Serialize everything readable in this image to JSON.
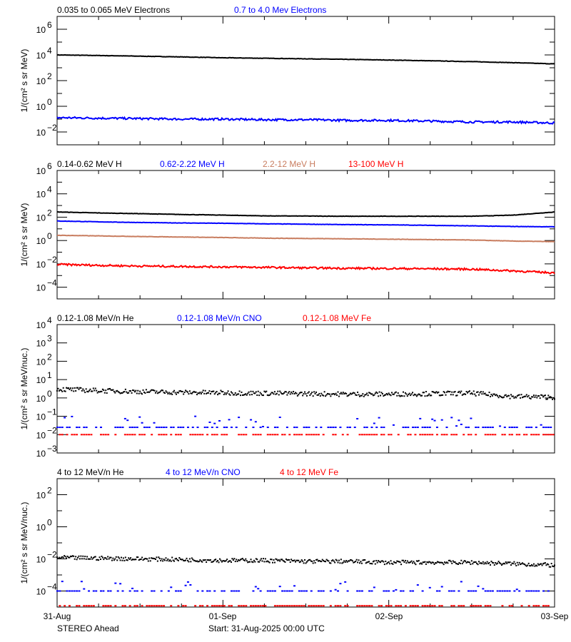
{
  "chart_data": [
    {
      "type": "line",
      "legend": [
        {
          "label": "0.035 to 0.065 MeV Electrons",
          "color": "#000000"
        },
        {
          "label": "0.7 to 4.0 Mev Electrons",
          "color": "#0000ff"
        }
      ],
      "ylabel": "1/(cm² s sr MeV)",
      "yscale": "log",
      "ylim_exp": [
        -3,
        7
      ],
      "ytick_exponents": [
        6,
        4,
        2,
        0,
        -2
      ],
      "x_hours": [
        0,
        6,
        12,
        18,
        24,
        30,
        36,
        42,
        48,
        54,
        60,
        66,
        72
      ],
      "series": [
        {
          "color": "#000000",
          "style": "line",
          "values": [
            10000,
            9000,
            8000,
            7000,
            6000,
            5500,
            5000,
            4500,
            4000,
            3500,
            3000,
            2500,
            2000
          ]
        },
        {
          "color": "#0000ff",
          "style": "line",
          "values": [
            0.13,
            0.12,
            0.11,
            0.1,
            0.1,
            0.09,
            0.09,
            0.08,
            0.08,
            0.07,
            0.06,
            0.06,
            0.05
          ]
        }
      ]
    },
    {
      "type": "line",
      "legend": [
        {
          "label": "0.14-0.62 MeV H",
          "color": "#000000"
        },
        {
          "label": "0.62-2.22 MeV H",
          "color": "#0000ff"
        },
        {
          "label": "2.2-12 MeV H",
          "color": "#c87c5e"
        },
        {
          "label": "13-100 MeV H",
          "color": "#ff0000"
        }
      ],
      "ylabel": "1/(cm² s sr MeV)",
      "yscale": "log",
      "ylim_exp": [
        -5,
        6
      ],
      "ytick_exponents": [
        6,
        4,
        2,
        0,
        -2,
        -4
      ],
      "x_hours": [
        0,
        6,
        12,
        18,
        24,
        30,
        36,
        42,
        48,
        54,
        60,
        66,
        72
      ],
      "series": [
        {
          "color": "#000000",
          "style": "line",
          "values": [
            280,
            230,
            200,
            170,
            150,
            130,
            125,
            120,
            120,
            120,
            120,
            150,
            280
          ]
        },
        {
          "color": "#0000ff",
          "style": "line",
          "values": [
            47,
            40,
            35,
            32,
            30,
            27,
            25,
            23,
            22,
            20,
            18,
            16,
            15
          ]
        },
        {
          "color": "#c87c5e",
          "style": "line",
          "values": [
            2.8,
            2.5,
            2.2,
            2,
            1.8,
            1.6,
            1.5,
            1.4,
            1.3,
            1.2,
            1.1,
            0.9,
            0.8
          ]
        },
        {
          "color": "#ff0000",
          "style": "line",
          "values": [
            0.009,
            0.0075,
            0.0065,
            0.006,
            0.0055,
            0.005,
            0.0045,
            0.0042,
            0.004,
            0.0038,
            0.0035,
            0.0025,
            0.0017
          ]
        }
      ]
    },
    {
      "type": "scatter",
      "legend": [
        {
          "label": "0.12-1.08 MeV/n He",
          "color": "#000000"
        },
        {
          "label": "0.12-1.08 MeV/n CNO",
          "color": "#0000ff"
        },
        {
          "label": "0.12-1.08 MeV Fe",
          "color": "#ff0000"
        }
      ],
      "ylabel": "1/(cm² s sr MeV/nuc.)",
      "yscale": "log",
      "ylim_exp": [
        -3,
        4
      ],
      "ytick_exponents": [
        4,
        3,
        2,
        1,
        0,
        -1,
        -2,
        -3
      ],
      "x_hours": [
        0,
        6,
        12,
        18,
        24,
        30,
        36,
        42,
        48,
        54,
        60,
        66,
        72
      ],
      "series": [
        {
          "color": "#000000",
          "style": "scatter",
          "values": [
            3,
            2.5,
            2.2,
            2,
            1.9,
            1.8,
            1.7,
            1.6,
            1.6,
            1.7,
            1.8,
            1.2,
            1.1
          ]
        },
        {
          "color": "#0000ff",
          "style": "scatter",
          "values": [
            0.025,
            0.025,
            0.025,
            0.025,
            0.025,
            0.025,
            0.025,
            0.025,
            0.025,
            0.025,
            0.025,
            0.025,
            0.025
          ]
        },
        {
          "color": "#ff0000",
          "style": "scatter",
          "values": [
            0.01,
            0.01,
            0.01,
            0.01,
            0.01,
            0.01,
            0.01,
            0.01,
            0.01,
            0.01,
            0.01,
            0.01,
            0.01
          ]
        }
      ]
    },
    {
      "type": "scatter",
      "legend": [
        {
          "label": "4 to 12 MeV/n He",
          "color": "#000000"
        },
        {
          "label": "4 to 12 MeV/n CNO",
          "color": "#0000ff"
        },
        {
          "label": "4 to 12 MeV Fe",
          "color": "#ff0000"
        }
      ],
      "ylabel": "1/(cm² s sr MeV/nuc.)",
      "yscale": "log",
      "ylim_exp": [
        -5,
        3
      ],
      "ytick_exponents": [
        2,
        0,
        -2,
        -4
      ],
      "x_hours": [
        0,
        6,
        12,
        18,
        24,
        30,
        36,
        42,
        48,
        54,
        60,
        66,
        72
      ],
      "series": [
        {
          "color": "#000000",
          "style": "scatter",
          "values": [
            0.012,
            0.011,
            0.01,
            0.009,
            0.008,
            0.008,
            0.007,
            0.007,
            0.006,
            0.006,
            0.006,
            0.005,
            0.004
          ]
        },
        {
          "color": "#0000ff",
          "style": "scatter",
          "values": [
            0.0001,
            0.0001,
            0.0001,
            0.0001,
            0.0001,
            0.0001,
            0.0001,
            0.0001,
            0.0001,
            0.0001,
            0.0001,
            0.0001,
            0.0001
          ]
        },
        {
          "color": "#ff0000",
          "style": "scatter",
          "values": [
            1.2e-05,
            1.2e-05,
            1.2e-05,
            1.2e-05,
            1.2e-05,
            1.2e-05,
            1.2e-05,
            1.2e-05,
            1.2e-05,
            1.2e-05,
            1.2e-05,
            1.2e-05,
            1.2e-05
          ]
        }
      ]
    }
  ],
  "x_axis": {
    "tick_labels": [
      "31-Aug",
      "01-Sep",
      "02-Sep",
      "03-Sep"
    ],
    "range_hours": [
      0,
      72
    ]
  },
  "footer": {
    "spacecraft": "STEREO Ahead",
    "start": "Start: 31-Aug-2025 00:00 UTC"
  }
}
